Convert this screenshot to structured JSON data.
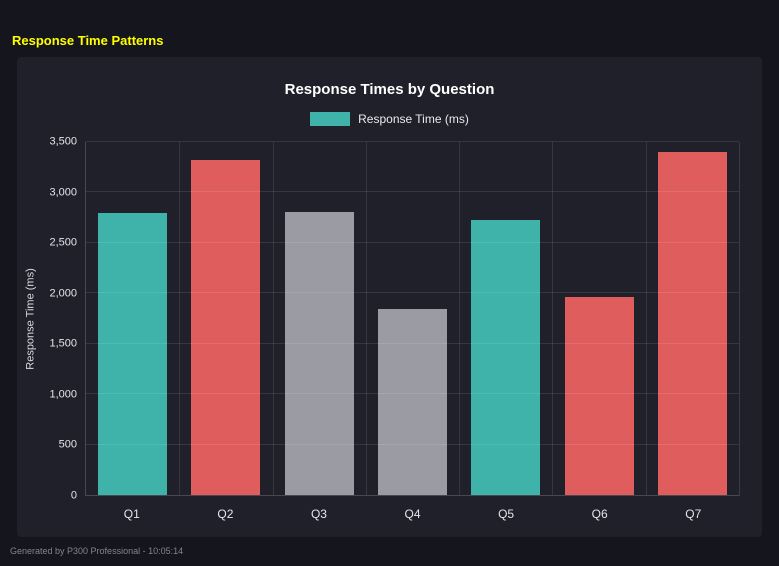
{
  "page": {
    "title": "Response Time Patterns",
    "title_color": "#ffff00",
    "footer": "Generated by P300 Professional - 10:05:14",
    "background": "#15151e",
    "panel_background": "#20202b"
  },
  "chart_data": {
    "type": "bar",
    "title": "Response Times by Question",
    "legend": [
      {
        "label": "Response Time (ms)",
        "color": "#3fb2aa"
      }
    ],
    "legend_position": "top",
    "categories": [
      "Q1",
      "Q2",
      "Q3",
      "Q4",
      "Q5",
      "Q6",
      "Q7"
    ],
    "values": [
      2800,
      3320,
      2810,
      1840,
      2730,
      1960,
      3400
    ],
    "bar_colors": [
      "#3fb2aa",
      "#e05d5d",
      "#9b9ba3",
      "#9b9ba3",
      "#3fb2aa",
      "#e05d5d",
      "#e05d5d"
    ],
    "xlabel": "",
    "ylabel": "Response Time (ms)",
    "ylim": [
      0,
      3500
    ],
    "yticks": [
      0,
      500,
      1000,
      1500,
      2000,
      2500,
      3000,
      3500
    ],
    "ytick_labels": [
      "0",
      "500",
      "1,000",
      "1,500",
      "2,000",
      "2,500",
      "3,000",
      "3,500"
    ],
    "grid": true
  }
}
